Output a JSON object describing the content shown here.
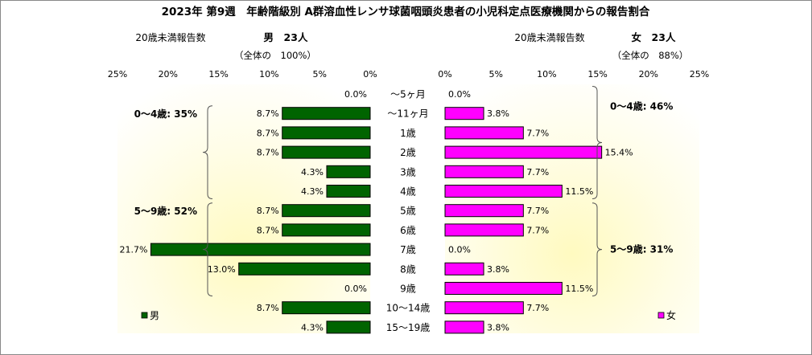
{
  "chart_data": {
    "type": "bar",
    "title": "2023年 第9週　年齢階級別 A群溶血性レンサ球菌咽頭炎患者の小児科定点医療機関からの報告割合",
    "categories": [
      "～5ヶ月",
      "～11ヶ月",
      "1歳",
      "2歳",
      "3歳",
      "4歳",
      "5歳",
      "6歳",
      "7歳",
      "8歳",
      "9歳",
      "10～14歳",
      "15～19歳"
    ],
    "x_ticks": [
      "25%",
      "20%",
      "15%",
      "10%",
      "5%",
      "0%"
    ],
    "x_ticks_right": [
      "0%",
      "5%",
      "10%",
      "15%",
      "20%",
      "25%"
    ],
    "xlim": [
      0,
      25
    ],
    "grid": false,
    "series": [
      {
        "name": "男",
        "color": "#006400",
        "values": [
          0.0,
          8.7,
          8.7,
          8.7,
          4.3,
          4.3,
          8.7,
          8.7,
          21.7,
          13.0,
          0.0,
          8.7,
          4.3
        ],
        "labels": [
          "0.0%",
          "8.7%",
          "8.7%",
          "8.7%",
          "4.3%",
          "4.3%",
          "8.7%",
          "8.7%",
          "21.7%",
          "13.0%",
          "0.0%",
          "8.7%",
          "4.3%"
        ],
        "header_note": "20歳未満報告数",
        "header_count": "男　23人",
        "header_total": "（全体の　100%）",
        "groups": [
          {
            "label": "0～4歳: 35%",
            "from": 1,
            "to": 5
          },
          {
            "label": "5～9歳: 52%",
            "from": 6,
            "to": 10
          }
        ]
      },
      {
        "name": "女",
        "color": "#ff00ff",
        "values": [
          0.0,
          3.8,
          7.7,
          15.4,
          7.7,
          11.5,
          7.7,
          7.7,
          0.0,
          3.8,
          11.5,
          7.7,
          3.8
        ],
        "labels": [
          "0.0%",
          "3.8%",
          "7.7%",
          "15.4%",
          "7.7%",
          "11.5%",
          "7.7%",
          "7.7%",
          "0.0%",
          "3.8%",
          "11.5%",
          "7.7%",
          "3.8%"
        ],
        "header_note": "20歳未満報告数",
        "header_count": "女　23人",
        "header_total": "（全体の　88%）",
        "groups": [
          {
            "label": "0～4歳: 46%",
            "from": 0,
            "to": 5
          },
          {
            "label": "5～9歳: 31%",
            "from": 6,
            "to": 10
          }
        ]
      }
    ]
  }
}
